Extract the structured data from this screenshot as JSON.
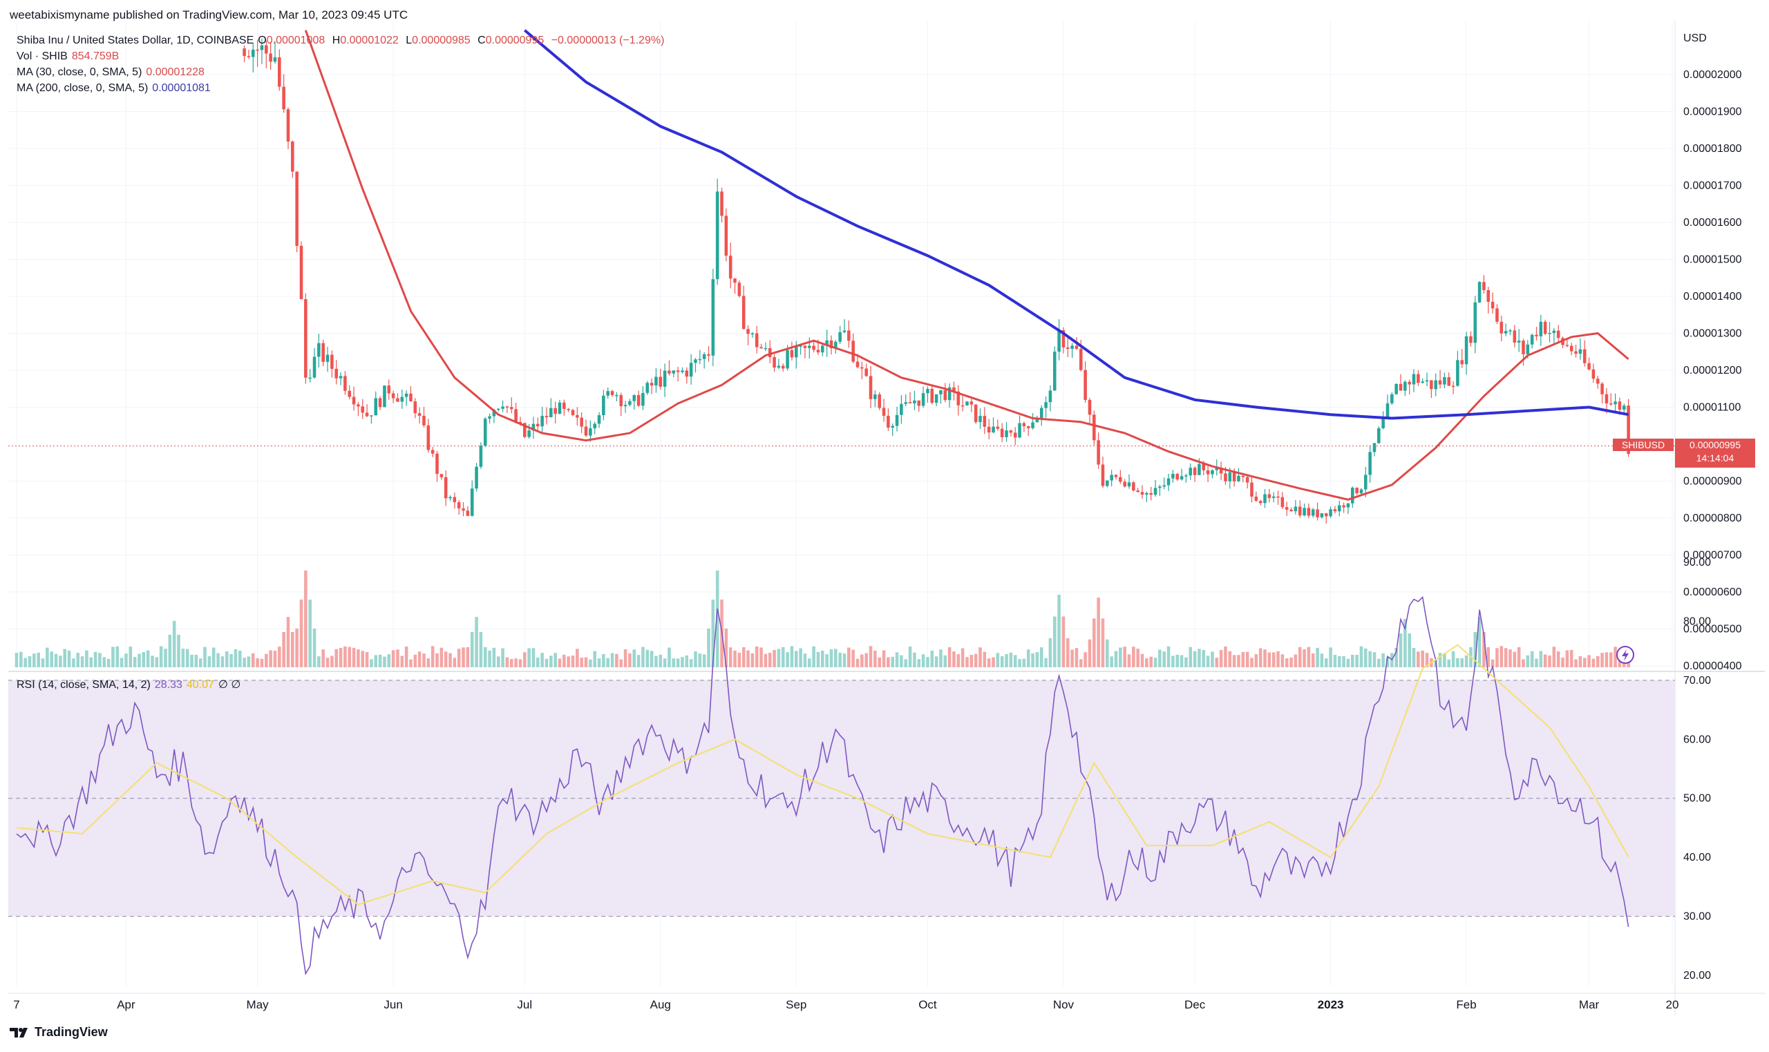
{
  "header": {
    "published": "weetabixismyname published on TradingView.com, Mar 10, 2023 09:45 UTC"
  },
  "legend": {
    "symbol": "Shiba Inu / United States Dollar, 1D, COINBASE",
    "o_label": "O",
    "o_value": "0.00001008",
    "h_label": "H",
    "h_value": "0.00001022",
    "l_label": "L",
    "l_value": "0.00000985",
    "c_label": "C",
    "c_value": "0.00000995",
    "change": "−0.00000013 (−1.29%)",
    "vol_label": "Vol · SHIB",
    "vol_value": "854.759B",
    "ma30_label": "MA (30, close, 0, SMA, 5)",
    "ma30_value": "0.00001228",
    "ma200_label": "MA (200, close, 0, SMA, 5)",
    "ma200_value": "0.00001081",
    "rsi_label": "RSI (14, close, SMA, 14, 2)",
    "rsi_value": "28.33",
    "rsi_ma_value": "40.07",
    "rsi_extra": "∅ ∅"
  },
  "price_tag": {
    "symbol": "SHIBUSD",
    "price": "0.00000995",
    "countdown": "14:14:04"
  },
  "brand": "TradingView",
  "colors": {
    "up": "#26a69a",
    "down": "#ef5350",
    "ma30": "#e04848",
    "ma200": "#2f2fd6",
    "rsi": "#7e57c2",
    "rsi_ma": "#f5e070",
    "rsi_band": "#ede7f6"
  },
  "chart_data": [
    {
      "type": "candlestick",
      "title": "",
      "y_axis_label": "USD",
      "ylim": [
        4e-06,
        2.12e-05
      ],
      "y_ticks": [
        "0.00002000",
        "0.00001900",
        "0.00001800",
        "0.00001700",
        "0.00001600",
        "0.00001500",
        "0.00001400",
        "0.00001300",
        "0.00001200",
        "0.00001100",
        "0.00000900",
        "0.00000800",
        "0.00000700",
        "0.00000600",
        "0.00000500",
        "0.00000400"
      ],
      "x_ticks": [
        "7",
        "Apr",
        "May",
        "Jun",
        "Jul",
        "Aug",
        "Sep",
        "Oct",
        "Nov",
        "Dec",
        "2023",
        "Feb",
        "Mar",
        "20"
      ],
      "x_dates": [
        "2022-03-07",
        "2022-04-01",
        "2022-05-01",
        "2022-06-01",
        "2022-07-01",
        "2022-08-01",
        "2022-09-01",
        "2022-10-01",
        "2022-11-01",
        "2022-12-01",
        "2023-01-01",
        "2023-02-01",
        "2023-03-01",
        "2023-03-20"
      ],
      "close_path": [
        [
          "2022-04-29",
          2.08e-05
        ],
        [
          "2022-05-05",
          2.05e-05
        ],
        [
          "2022-05-09",
          1.72e-05
        ],
        [
          "2022-05-11",
          1.38e-05
        ],
        [
          "2022-05-12",
          1.18e-05
        ],
        [
          "2022-05-15",
          1.25e-05
        ],
        [
          "2022-05-20",
          1.18e-05
        ],
        [
          "2022-05-26",
          1.08e-05
        ],
        [
          "2022-05-31",
          1.15e-05
        ],
        [
          "2022-06-06",
          1.1e-05
        ],
        [
          "2022-06-13",
          8.6e-06
        ],
        [
          "2022-06-18",
          8e-06
        ],
        [
          "2022-06-22",
          1.08e-05
        ],
        [
          "2022-06-26",
          1.12e-05
        ],
        [
          "2022-07-01",
          1.02e-05
        ],
        [
          "2022-07-08",
          1.1e-05
        ],
        [
          "2022-07-15",
          1.04e-05
        ],
        [
          "2022-07-21",
          1.15e-05
        ],
        [
          "2022-07-25",
          1.1e-05
        ],
        [
          "2022-07-31",
          1.17e-05
        ],
        [
          "2022-08-07",
          1.2e-05
        ],
        [
          "2022-08-12",
          1.25e-05
        ],
        [
          "2022-08-14",
          1.69e-05
        ],
        [
          "2022-08-17",
          1.45e-05
        ],
        [
          "2022-08-21",
          1.3e-05
        ],
        [
          "2022-08-27",
          1.22e-05
        ],
        [
          "2022-09-01",
          1.24e-05
        ],
        [
          "2022-09-08",
          1.28e-05
        ],
        [
          "2022-09-12",
          1.3e-05
        ],
        [
          "2022-09-18",
          1.14e-05
        ],
        [
          "2022-09-22",
          1.06e-05
        ],
        [
          "2022-09-28",
          1.12e-05
        ],
        [
          "2022-10-05",
          1.14e-05
        ],
        [
          "2022-10-10",
          1.1e-05
        ],
        [
          "2022-10-16",
          1.03e-05
        ],
        [
          "2022-10-22",
          1.04e-05
        ],
        [
          "2022-10-28",
          1.1e-05
        ],
        [
          "2022-10-31",
          1.29e-05
        ],
        [
          "2022-11-04",
          1.25e-05
        ],
        [
          "2022-11-08",
          1e-05
        ],
        [
          "2022-11-10",
          9e-06
        ],
        [
          "2022-11-14",
          9.1e-06
        ],
        [
          "2022-11-21",
          8.6e-06
        ],
        [
          "2022-11-28",
          9.3e-06
        ],
        [
          "2022-12-05",
          9.3e-06
        ],
        [
          "2022-12-12",
          9e-06
        ],
        [
          "2022-12-16",
          8.5e-06
        ],
        [
          "2022-12-21",
          8.4e-06
        ],
        [
          "2022-12-28",
          8.1e-06
        ],
        [
          "2023-01-03",
          8.3e-06
        ],
        [
          "2023-01-08",
          8.9e-06
        ],
        [
          "2023-01-12",
          1.03e-05
        ],
        [
          "2023-01-16",
          1.15e-05
        ],
        [
          "2023-01-20",
          1.18e-05
        ],
        [
          "2023-01-24",
          1.16e-05
        ],
        [
          "2023-01-29",
          1.18e-05
        ],
        [
          "2023-02-02",
          1.3e-05
        ],
        [
          "2023-02-04",
          1.45e-05
        ],
        [
          "2023-02-09",
          1.32e-05
        ],
        [
          "2023-02-14",
          1.25e-05
        ],
        [
          "2023-02-18",
          1.33e-05
        ],
        [
          "2023-02-22",
          1.28e-05
        ],
        [
          "2023-02-26",
          1.25e-05
        ],
        [
          "2023-03-02",
          1.18e-05
        ],
        [
          "2023-03-06",
          1.11e-05
        ],
        [
          "2023-03-09",
          1.1e-05
        ],
        [
          "2023-03-10",
          9.9e-06
        ]
      ],
      "ma30": [
        [
          "2022-05-12",
          2.12e-05
        ],
        [
          "2022-05-25",
          1.69e-05
        ],
        [
          "2022-06-05",
          1.36e-05
        ],
        [
          "2022-06-15",
          1.18e-05
        ],
        [
          "2022-06-25",
          1.08e-05
        ],
        [
          "2022-07-05",
          1.03e-05
        ],
        [
          "2022-07-15",
          1.01e-05
        ],
        [
          "2022-07-25",
          1.03e-05
        ],
        [
          "2022-08-05",
          1.11e-05
        ],
        [
          "2022-08-15",
          1.16e-05
        ],
        [
          "2022-08-25",
          1.24e-05
        ],
        [
          "2022-09-05",
          1.28e-05
        ],
        [
          "2022-09-15",
          1.24e-05
        ],
        [
          "2022-09-25",
          1.18e-05
        ],
        [
          "2022-10-05",
          1.15e-05
        ],
        [
          "2022-10-15",
          1.11e-05
        ],
        [
          "2022-10-25",
          1.07e-05
        ],
        [
          "2022-11-05",
          1.06e-05
        ],
        [
          "2022-11-15",
          1.03e-05
        ],
        [
          "2022-11-25",
          9.8e-06
        ],
        [
          "2022-12-05",
          9.4e-06
        ],
        [
          "2022-12-15",
          9.1e-06
        ],
        [
          "2022-12-25",
          8.8e-06
        ],
        [
          "2023-01-05",
          8.5e-06
        ],
        [
          "2023-01-15",
          8.9e-06
        ],
        [
          "2023-01-25",
          9.9e-06
        ],
        [
          "2023-02-05",
          1.13e-05
        ],
        [
          "2023-02-15",
          1.24e-05
        ],
        [
          "2023-02-25",
          1.29e-05
        ],
        [
          "2023-03-03",
          1.3e-05
        ],
        [
          "2023-03-10",
          1.23e-05
        ]
      ],
      "ma200": [
        [
          "2022-07-01",
          2.12e-05
        ],
        [
          "2022-07-15",
          1.98e-05
        ],
        [
          "2022-08-01",
          1.86e-05
        ],
        [
          "2022-08-15",
          1.79e-05
        ],
        [
          "2022-09-01",
          1.67e-05
        ],
        [
          "2022-09-15",
          1.59e-05
        ],
        [
          "2022-10-01",
          1.51e-05
        ],
        [
          "2022-10-15",
          1.43e-05
        ],
        [
          "2022-11-01",
          1.3e-05
        ],
        [
          "2022-11-15",
          1.18e-05
        ],
        [
          "2022-12-01",
          1.12e-05
        ],
        [
          "2022-12-15",
          1.1e-05
        ],
        [
          "2023-01-01",
          1.08e-05
        ],
        [
          "2023-01-15",
          1.07e-05
        ],
        [
          "2023-02-01",
          1.08e-05
        ],
        [
          "2023-02-15",
          1.09e-05
        ],
        [
          "2023-03-01",
          1.1e-05
        ],
        [
          "2023-03-10",
          1.08e-05
        ]
      ],
      "volume_spikes": [
        [
          "2022-04-12",
          0.48
        ],
        [
          "2022-05-08",
          0.52
        ],
        [
          "2022-05-12",
          1.0
        ],
        [
          "2022-06-20",
          0.52
        ],
        [
          "2022-08-14",
          1.0
        ],
        [
          "2022-10-31",
          0.75
        ],
        [
          "2022-11-09",
          0.72
        ],
        [
          "2023-01-18",
          0.5
        ],
        [
          "2023-02-04",
          0.52
        ]
      ]
    },
    {
      "type": "line",
      "title": "",
      "ylim": [
        15,
        92
      ],
      "y_ticks": [
        "90.00",
        "80.00",
        "70.00",
        "60.00",
        "50.00",
        "40.00",
        "30.00",
        "20.00"
      ],
      "bands": {
        "upper": 70,
        "middle": 50,
        "lower": 30
      },
      "series": [
        {
          "name": "",
          "points": [
            [
              "2022-03-07",
              46
            ],
            [
              "2022-03-15",
              42
            ],
            [
              "2022-03-22",
              50
            ],
            [
              "2022-03-28",
              60
            ],
            [
              "2022-04-03",
              65
            ],
            [
              "2022-04-08",
              54
            ],
            [
              "2022-04-14",
              56
            ],
            [
              "2022-04-20",
              40
            ],
            [
              "2022-04-26",
              52
            ],
            [
              "2022-05-02",
              44
            ],
            [
              "2022-05-08",
              36
            ],
            [
              "2022-05-12",
              23
            ],
            [
              "2022-05-18",
              30
            ],
            [
              "2022-05-24",
              32
            ],
            [
              "2022-05-30",
              28
            ],
            [
              "2022-06-05",
              40
            ],
            [
              "2022-06-10",
              36
            ],
            [
              "2022-06-14",
              32
            ],
            [
              "2022-06-18",
              26
            ],
            [
              "2022-06-22",
              32
            ],
            [
              "2022-06-26",
              52
            ],
            [
              "2022-07-02",
              46
            ],
            [
              "2022-07-08",
              50
            ],
            [
              "2022-07-13",
              58
            ],
            [
              "2022-07-19",
              48
            ],
            [
              "2022-07-25",
              58
            ],
            [
              "2022-07-31",
              62
            ],
            [
              "2022-08-06",
              56
            ],
            [
              "2022-08-12",
              62
            ],
            [
              "2022-08-14",
              83
            ],
            [
              "2022-08-18",
              58
            ],
            [
              "2022-08-24",
              52
            ],
            [
              "2022-08-30",
              48
            ],
            [
              "2022-09-05",
              54
            ],
            [
              "2022-09-10",
              62
            ],
            [
              "2022-09-15",
              50
            ],
            [
              "2022-09-20",
              42
            ],
            [
              "2022-09-26",
              48
            ],
            [
              "2022-10-02",
              50
            ],
            [
              "2022-10-08",
              46
            ],
            [
              "2022-10-14",
              44
            ],
            [
              "2022-10-20",
              38
            ],
            [
              "2022-10-26",
              44
            ],
            [
              "2022-10-31",
              72
            ],
            [
              "2022-11-04",
              60
            ],
            [
              "2022-11-08",
              45
            ],
            [
              "2022-11-11",
              32
            ],
            [
              "2022-11-16",
              40
            ],
            [
              "2022-11-22",
              38
            ],
            [
              "2022-11-28",
              46
            ],
            [
              "2022-12-04",
              48
            ],
            [
              "2022-12-10",
              44
            ],
            [
              "2022-12-15",
              34
            ],
            [
              "2022-12-20",
              40
            ],
            [
              "2022-12-26",
              36
            ],
            [
              "2023-01-01",
              40
            ],
            [
              "2023-01-07",
              52
            ],
            [
              "2023-01-12",
              68
            ],
            [
              "2023-01-17",
              80
            ],
            [
              "2023-01-22",
              85
            ],
            [
              "2023-01-27",
              64
            ],
            [
              "2023-02-01",
              62
            ],
            [
              "2023-02-04",
              80
            ],
            [
              "2023-02-08",
              66
            ],
            [
              "2023-02-12",
              52
            ],
            [
              "2023-02-18",
              56
            ],
            [
              "2023-02-24",
              50
            ],
            [
              "2023-03-01",
              48
            ],
            [
              "2023-03-05",
              40
            ],
            [
              "2023-03-08",
              36
            ],
            [
              "2023-03-10",
              28.33
            ]
          ]
        },
        {
          "name": "",
          "points": [
            [
              "2022-03-07",
              45
            ],
            [
              "2022-03-22",
              44
            ],
            [
              "2022-04-08",
              56
            ],
            [
              "2022-04-24",
              50
            ],
            [
              "2022-05-10",
              40
            ],
            [
              "2022-05-24",
              32
            ],
            [
              "2022-06-10",
              36
            ],
            [
              "2022-06-22",
              34
            ],
            [
              "2022-07-06",
              44
            ],
            [
              "2022-07-20",
              50
            ],
            [
              "2022-08-05",
              56
            ],
            [
              "2022-08-18",
              60
            ],
            [
              "2022-09-01",
              54
            ],
            [
              "2022-09-15",
              50
            ],
            [
              "2022-10-01",
              44
            ],
            [
              "2022-10-15",
              42
            ],
            [
              "2022-10-29",
              40
            ],
            [
              "2022-11-08",
              56
            ],
            [
              "2022-11-20",
              42
            ],
            [
              "2022-12-05",
              42
            ],
            [
              "2022-12-18",
              46
            ],
            [
              "2023-01-01",
              40
            ],
            [
              "2023-01-12",
              52
            ],
            [
              "2023-01-22",
              72
            ],
            [
              "2023-01-30",
              76
            ],
            [
              "2023-02-08",
              70
            ],
            [
              "2023-02-20",
              62
            ],
            [
              "2023-03-01",
              52
            ],
            [
              "2023-03-10",
              40.07
            ]
          ]
        }
      ]
    }
  ]
}
